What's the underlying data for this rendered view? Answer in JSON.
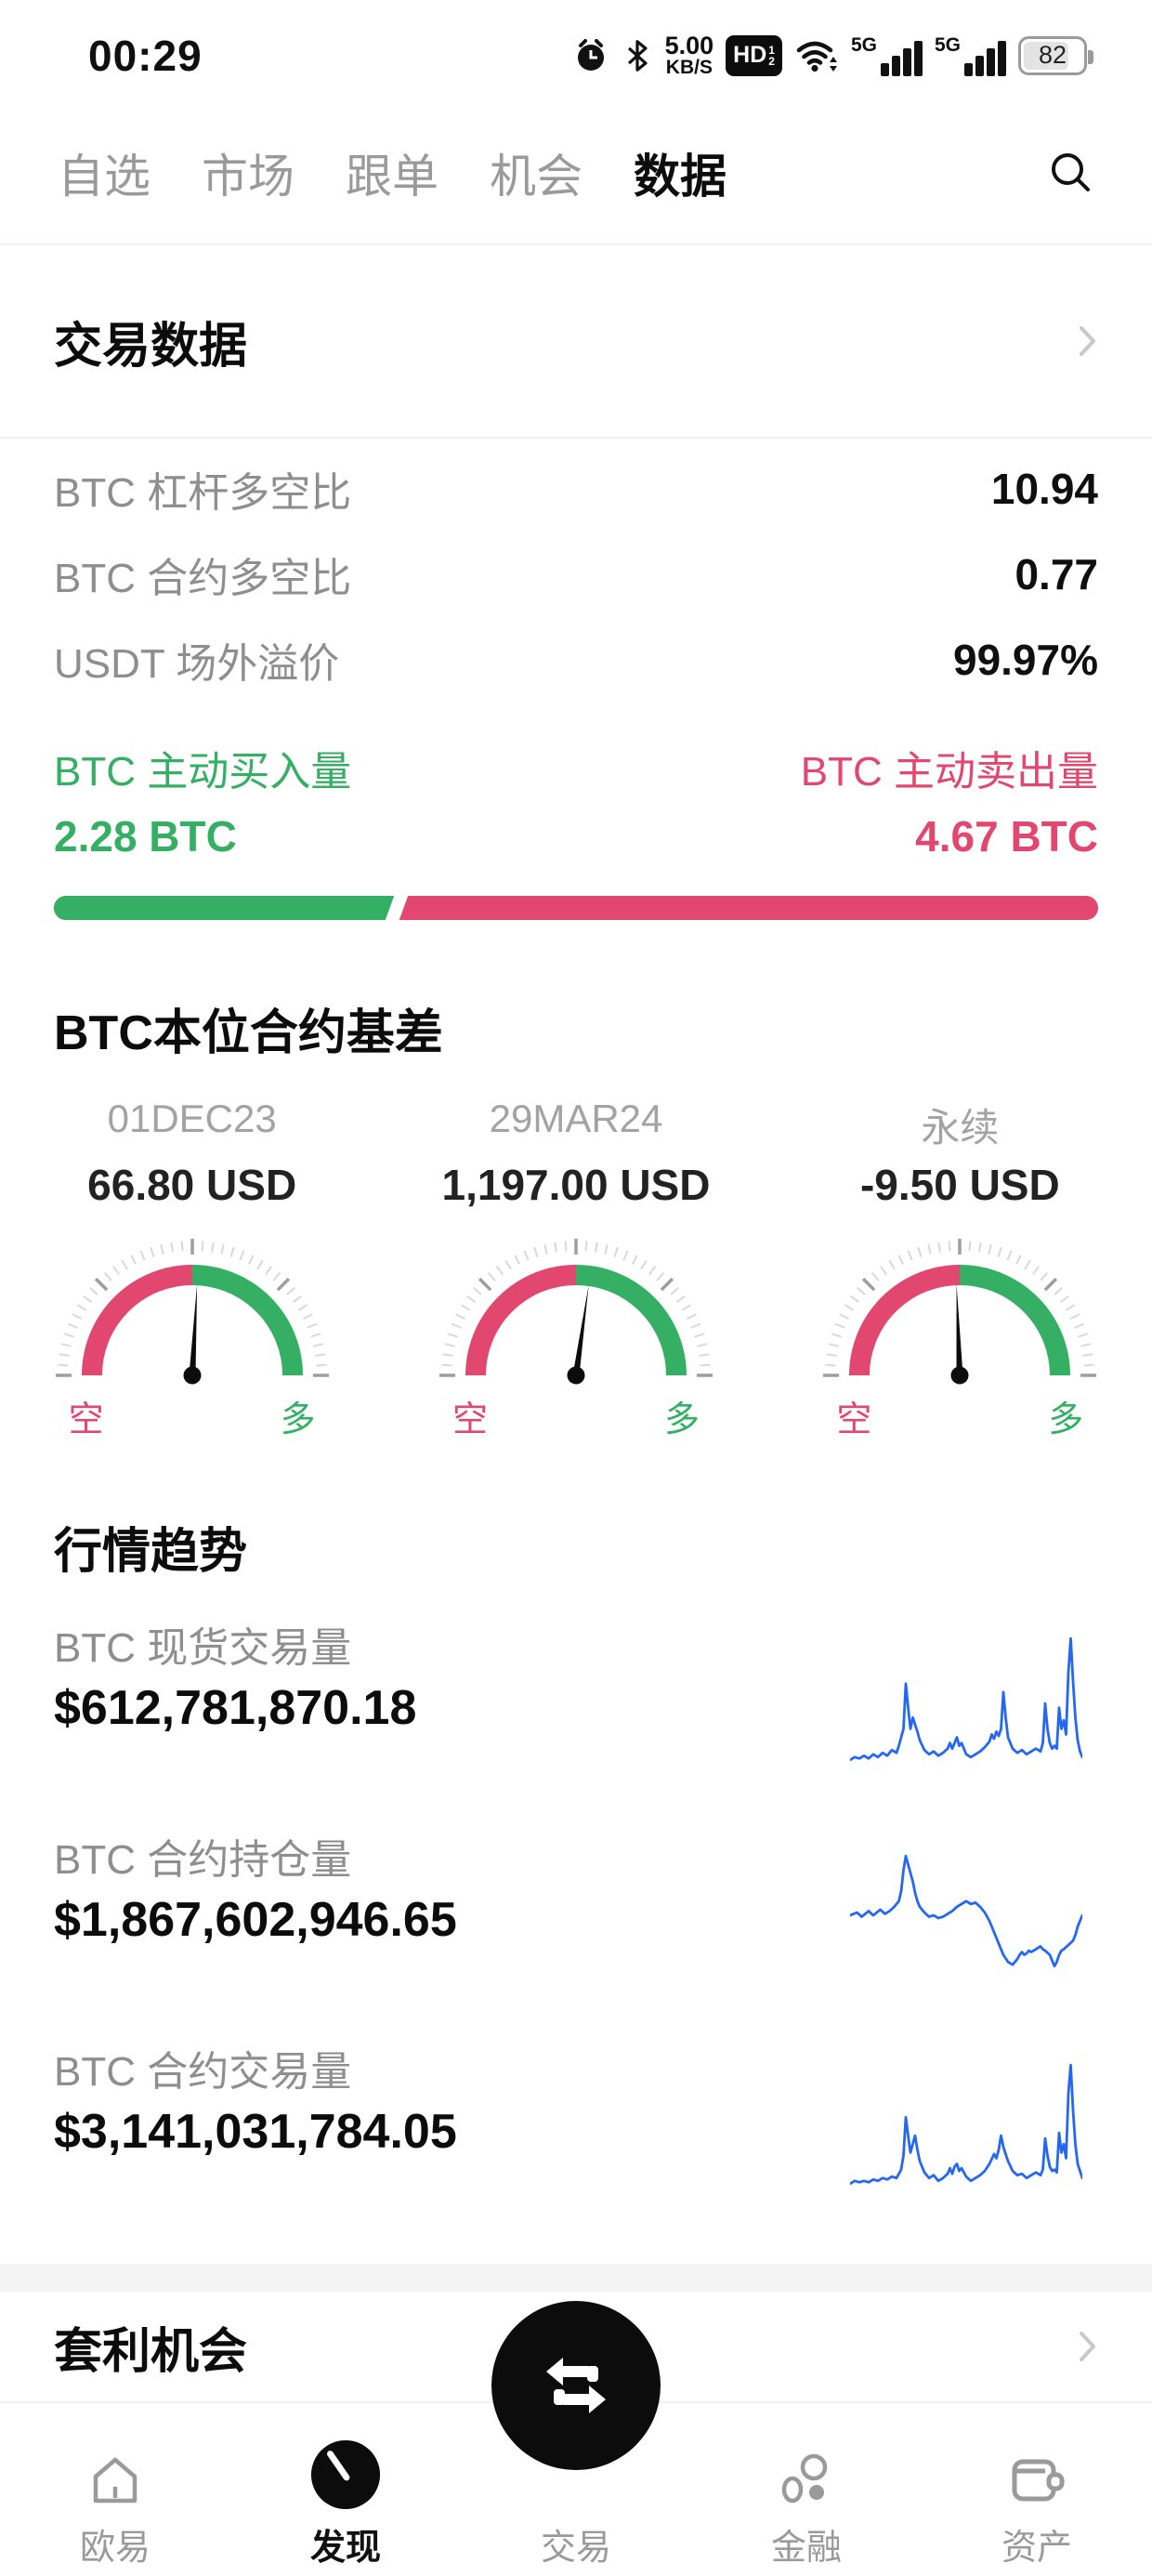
{
  "status_bar": {
    "time": "00:29",
    "speed_value": "5.00",
    "speed_unit": "KB/S",
    "hd_label": "HD",
    "hd_sup": "1",
    "hd_sub": "2",
    "network_badge_1": "5G",
    "network_badge_2": "5G",
    "battery_level": "82",
    "icons": [
      "alarm-icon",
      "bluetooth-icon",
      "hd-volte-icon",
      "wifi-icon",
      "signal-icon",
      "signal-icon",
      "battery-icon"
    ]
  },
  "tab_bar": {
    "tabs": [
      {
        "label": "自选",
        "active": false
      },
      {
        "label": "市场",
        "active": false
      },
      {
        "label": "跟单",
        "active": false
      },
      {
        "label": "机会",
        "active": false
      },
      {
        "label": "数据",
        "active": true
      }
    ],
    "search_icon": "search-icon"
  },
  "trade_data": {
    "title": "交易数据",
    "rows": [
      {
        "label": "BTC 杠杆多空比",
        "value": "10.94"
      },
      {
        "label": "BTC 合约多空比",
        "value": "0.77"
      },
      {
        "label": "USDT 场外溢价",
        "value": "99.97%"
      }
    ]
  },
  "taker_flow": {
    "buy_label": "BTC 主动买入量",
    "buy_value": "2.28 BTC",
    "sell_label": "BTC 主动卖出量",
    "sell_value": "4.67 BTC",
    "buy_ratio_percent": 32.8
  },
  "basis": {
    "title": "BTC本位合约基差",
    "bear_label": "空",
    "bull_label": "多",
    "gauges": [
      {
        "contract": "01DEC23",
        "value": "66.80 USD",
        "needle_deg": 3
      },
      {
        "contract": "29MAR24",
        "value": "1,197.00 USD",
        "needle_deg": 8
      },
      {
        "contract": "永续",
        "value": "-9.50 USD",
        "needle_deg": -2
      }
    ]
  },
  "trend": {
    "title": "行情趋势",
    "rows": [
      {
        "label": "BTC 现货交易量",
        "value": "$612,781,870.18",
        "spark": [
          [
            0,
            92
          ],
          [
            2,
            90
          ],
          [
            4,
            91
          ],
          [
            6,
            89
          ],
          [
            8,
            91
          ],
          [
            10,
            88
          ],
          [
            12,
            90
          ],
          [
            14,
            87
          ],
          [
            16,
            89
          ],
          [
            18,
            85
          ],
          [
            20,
            87
          ],
          [
            21,
            82
          ],
          [
            23,
            70
          ],
          [
            24,
            38
          ],
          [
            25,
            55
          ],
          [
            26,
            70
          ],
          [
            27,
            62
          ],
          [
            28,
            67
          ],
          [
            29,
            72
          ],
          [
            30,
            78
          ],
          [
            32,
            85
          ],
          [
            34,
            88
          ],
          [
            36,
            86
          ],
          [
            38,
            89
          ],
          [
            40,
            87
          ],
          [
            42,
            84
          ],
          [
            43,
            80
          ],
          [
            44,
            84
          ],
          [
            45,
            80
          ],
          [
            46,
            76
          ],
          [
            47,
            82
          ],
          [
            48,
            80
          ],
          [
            50,
            88
          ],
          [
            52,
            90
          ],
          [
            54,
            88
          ],
          [
            56,
            86
          ],
          [
            58,
            83
          ],
          [
            60,
            79
          ],
          [
            61,
            74
          ],
          [
            62,
            77
          ],
          [
            63,
            72
          ],
          [
            64,
            75
          ],
          [
            65,
            70
          ],
          [
            66,
            44
          ],
          [
            67,
            62
          ],
          [
            68,
            76
          ],
          [
            70,
            84
          ],
          [
            72,
            87
          ],
          [
            74,
            85
          ],
          [
            76,
            88
          ],
          [
            78,
            86
          ],
          [
            80,
            84
          ],
          [
            82,
            86
          ],
          [
            83,
            80
          ],
          [
            84,
            52
          ],
          [
            85,
            70
          ],
          [
            86,
            80
          ],
          [
            87,
            84
          ],
          [
            88,
            82
          ],
          [
            89,
            84
          ],
          [
            90,
            55
          ],
          [
            91,
            70
          ],
          [
            92,
            64
          ],
          [
            93,
            74
          ],
          [
            94,
            30
          ],
          [
            95,
            6
          ],
          [
            96,
            36
          ],
          [
            97,
            62
          ],
          [
            98,
            78
          ],
          [
            99,
            86
          ],
          [
            100,
            90
          ]
        ]
      },
      {
        "label": "BTC 合约持仓量",
        "value": "$1,867,602,946.65",
        "spark": [
          [
            0,
            52
          ],
          [
            3,
            50
          ],
          [
            5,
            53
          ],
          [
            8,
            49
          ],
          [
            10,
            52
          ],
          [
            13,
            48
          ],
          [
            15,
            51
          ],
          [
            17,
            49
          ],
          [
            19,
            46
          ],
          [
            21,
            42
          ],
          [
            22,
            35
          ],
          [
            23,
            20
          ],
          [
            24,
            10
          ],
          [
            25,
            16
          ],
          [
            26,
            22
          ],
          [
            27,
            28
          ],
          [
            28,
            36
          ],
          [
            29,
            42
          ],
          [
            30,
            46
          ],
          [
            32,
            50
          ],
          [
            34,
            53
          ],
          [
            36,
            52
          ],
          [
            38,
            54
          ],
          [
            40,
            53
          ],
          [
            42,
            51
          ],
          [
            44,
            49
          ],
          [
            46,
            46
          ],
          [
            48,
            44
          ],
          [
            50,
            42
          ],
          [
            52,
            44
          ],
          [
            54,
            43
          ],
          [
            56,
            46
          ],
          [
            58,
            50
          ],
          [
            60,
            56
          ],
          [
            62,
            64
          ],
          [
            64,
            72
          ],
          [
            66,
            80
          ],
          [
            68,
            85
          ],
          [
            70,
            87
          ],
          [
            71,
            85
          ],
          [
            72,
            83
          ],
          [
            73,
            80
          ],
          [
            74,
            78
          ],
          [
            75,
            80
          ],
          [
            76,
            79
          ],
          [
            77,
            77
          ],
          [
            78,
            78
          ],
          [
            80,
            76
          ],
          [
            82,
            74
          ],
          [
            83,
            76
          ],
          [
            84,
            77
          ],
          [
            86,
            80
          ],
          [
            87,
            84
          ],
          [
            88,
            88
          ],
          [
            89,
            85
          ],
          [
            90,
            80
          ],
          [
            91,
            77
          ],
          [
            92,
            76
          ],
          [
            94,
            73
          ],
          [
            96,
            70
          ],
          [
            97,
            66
          ],
          [
            98,
            60
          ],
          [
            100,
            52
          ]
        ]
      },
      {
        "label": "BTC 合约交易量",
        "value": "$3,141,031,784.05",
        "spark": [
          [
            0,
            92
          ],
          [
            2,
            90
          ],
          [
            4,
            91
          ],
          [
            6,
            90
          ],
          [
            8,
            91
          ],
          [
            10,
            89
          ],
          [
            12,
            90
          ],
          [
            14,
            88
          ],
          [
            16,
            89
          ],
          [
            18,
            87
          ],
          [
            20,
            88
          ],
          [
            22,
            82
          ],
          [
            23,
            72
          ],
          [
            24,
            45
          ],
          [
            25,
            58
          ],
          [
            26,
            70
          ],
          [
            27,
            64
          ],
          [
            28,
            58
          ],
          [
            29,
            68
          ],
          [
            30,
            76
          ],
          [
            32,
            84
          ],
          [
            34,
            88
          ],
          [
            36,
            86
          ],
          [
            38,
            90
          ],
          [
            40,
            88
          ],
          [
            42,
            85
          ],
          [
            43,
            81
          ],
          [
            44,
            85
          ],
          [
            45,
            80
          ],
          [
            46,
            78
          ],
          [
            47,
            83
          ],
          [
            48,
            81
          ],
          [
            50,
            87
          ],
          [
            52,
            90
          ],
          [
            54,
            88
          ],
          [
            56,
            86
          ],
          [
            58,
            83
          ],
          [
            60,
            78
          ],
          [
            62,
            71
          ],
          [
            63,
            74
          ],
          [
            64,
            68
          ],
          [
            65,
            58
          ],
          [
            66,
            66
          ],
          [
            68,
            76
          ],
          [
            70,
            83
          ],
          [
            72,
            86
          ],
          [
            74,
            85
          ],
          [
            76,
            88
          ],
          [
            78,
            86
          ],
          [
            80,
            84
          ],
          [
            82,
            86
          ],
          [
            83,
            82
          ],
          [
            84,
            60
          ],
          [
            85,
            72
          ],
          [
            86,
            80
          ],
          [
            87,
            83
          ],
          [
            88,
            82
          ],
          [
            89,
            84
          ],
          [
            90,
            56
          ],
          [
            91,
            70
          ],
          [
            92,
            64
          ],
          [
            93,
            74
          ],
          [
            94,
            28
          ],
          [
            95,
            8
          ],
          [
            96,
            40
          ],
          [
            97,
            64
          ],
          [
            98,
            78
          ],
          [
            100,
            88
          ]
        ]
      }
    ]
  },
  "arbitrage": {
    "title": "套利机会"
  },
  "bottom_nav": {
    "items": [
      {
        "label": "欧易",
        "active": false,
        "icon": "home-icon"
      },
      {
        "label": "发现",
        "active": true,
        "icon": "discover-icon"
      },
      {
        "label": "交易",
        "active": false,
        "icon": "swap-icon"
      },
      {
        "label": "金融",
        "active": false,
        "icon": "finance-icon"
      },
      {
        "label": "资产",
        "active": false,
        "icon": "wallet-icon"
      }
    ]
  },
  "colors": {
    "green": "#34AF63",
    "pink": "#E2486F",
    "blue": "#2468F2",
    "black": "#0c0c0c"
  }
}
